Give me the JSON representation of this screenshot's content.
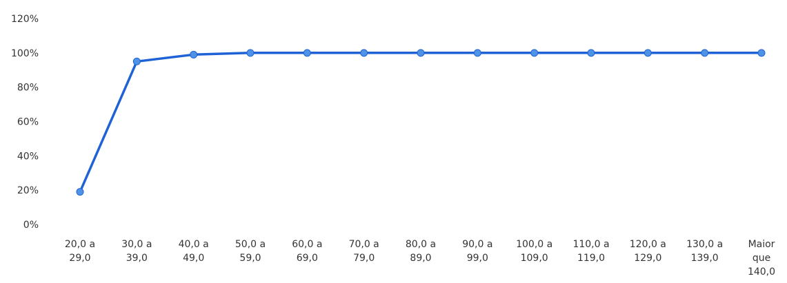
{
  "chart_data": {
    "type": "line",
    "categories": [
      [
        "20,0 a",
        "29,0"
      ],
      [
        "30,0 a",
        "39,0"
      ],
      [
        "40,0 a",
        "49,0"
      ],
      [
        "50,0 a",
        "59,0"
      ],
      [
        "60,0 a",
        "69,0"
      ],
      [
        "70,0 a",
        "79,0"
      ],
      [
        "80,0 a",
        "89,0"
      ],
      [
        "90,0 a",
        "99,0"
      ],
      [
        "100,0 a",
        "109,0"
      ],
      [
        "110,0 a",
        "119,0"
      ],
      [
        "120,0 a",
        "129,0"
      ],
      [
        "130,0 a",
        "139,0"
      ],
      [
        "Maior",
        "que",
        "140,0"
      ]
    ],
    "series": [
      {
        "values": [
          19,
          95,
          99,
          100,
          100,
          100,
          100,
          100,
          100,
          100,
          100,
          100,
          100
        ]
      }
    ],
    "ylim": [
      0,
      120
    ],
    "yticks": [
      "0%",
      "20%",
      "40%",
      "60%",
      "80%",
      "100%",
      "120%"
    ],
    "grid": false,
    "legend": "none",
    "line_color": "#1f62d6",
    "marker_color": "#4f93e6"
  }
}
